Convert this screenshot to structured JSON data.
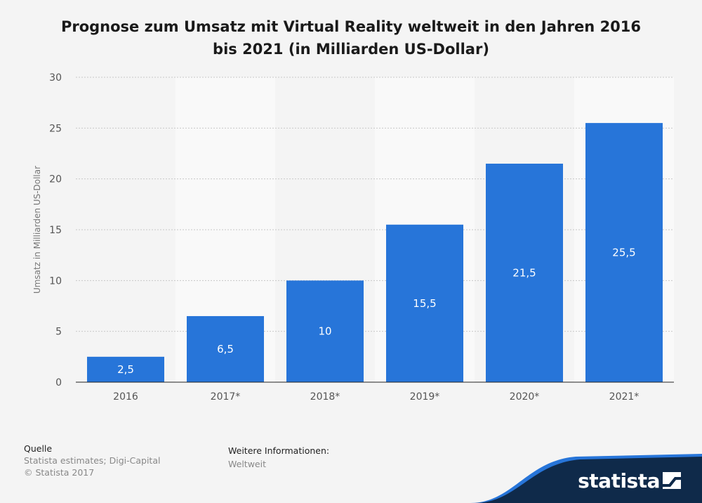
{
  "chart_data": {
    "type": "bar",
    "title_line1": "Prognose zum Umsatz mit Virtual Reality weltweit in den Jahren 2016",
    "title_line2": "bis 2021 (in Milliarden US-Dollar)",
    "categories": [
      "2016",
      "2017*",
      "2018*",
      "2019*",
      "2020*",
      "2021*"
    ],
    "values": [
      2.5,
      6.5,
      10,
      15.5,
      21.5,
      25.5
    ],
    "value_labels": [
      "2,5",
      "6,5",
      "10",
      "15,5",
      "21,5",
      "25,5"
    ],
    "xlabel": "",
    "ylabel": "Umsatz in Milliarden US-Dollar",
    "ylim": [
      0,
      30
    ],
    "yticks": [
      0,
      5,
      10,
      15,
      20,
      25,
      30
    ],
    "grid": true,
    "bar_color": "#2775d9",
    "alt_band_color": "#f9f9f9"
  },
  "footer": {
    "source_heading": "Quelle",
    "source_text": "Statista estimates; Digi-Capital",
    "copyright": "© Statista 2017",
    "info_heading": "Weitere Informationen:",
    "info_text": "Weltweit"
  },
  "logo": {
    "text": "statista",
    "color": "#0f2a4a",
    "accent": "#2775d9"
  }
}
